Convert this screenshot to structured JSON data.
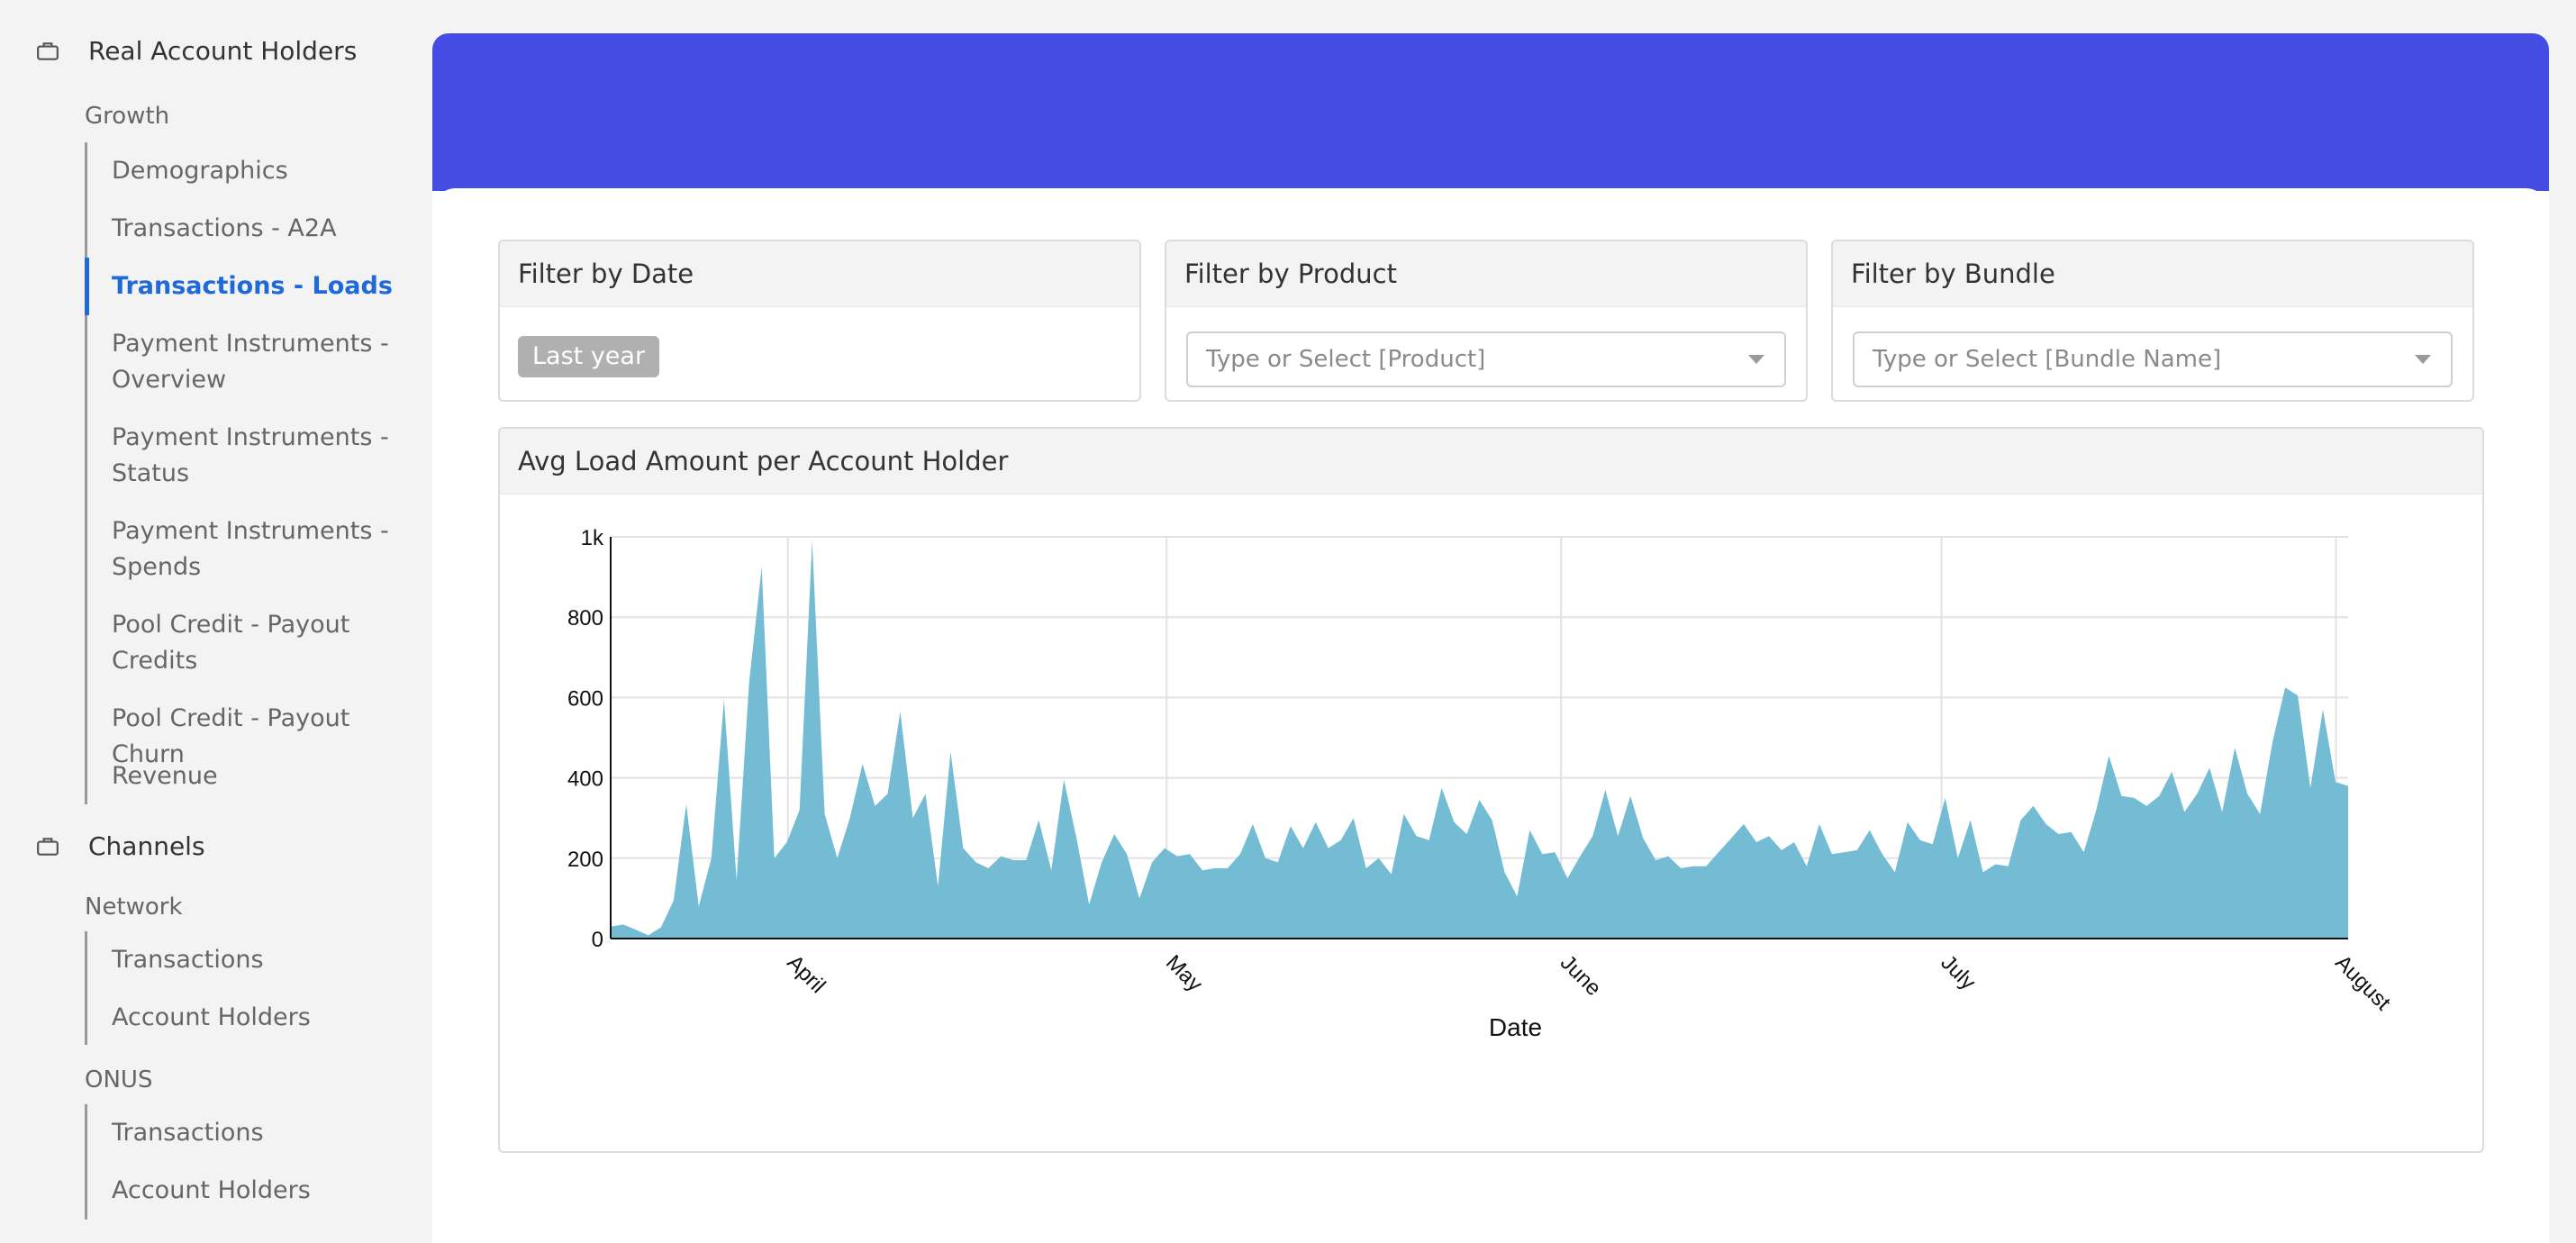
{
  "sidebar": {
    "sections": [
      {
        "title": "Real Account Holders",
        "groups": [
          {
            "label": "Growth",
            "items": [
              {
                "label": "Demographics"
              },
              {
                "label": "Transactions - A2A"
              },
              {
                "label": "Transactions - Loads",
                "active": true
              },
              {
                "label": "Payment Instruments - Overview"
              },
              {
                "label": "Payment Instruments - Status"
              },
              {
                "label": "Payment Instruments - Spends"
              },
              {
                "label": "Pool Credit - Payout Credits"
              },
              {
                "label": "Pool Credit - Payout Churn"
              },
              {
                "label": "Revenue"
              }
            ]
          }
        ]
      },
      {
        "title": "Channels",
        "groups": [
          {
            "label": "Network",
            "items": [
              {
                "label": "Transactions"
              },
              {
                "label": "Account Holders"
              }
            ]
          },
          {
            "label": "ONUS",
            "items": [
              {
                "label": "Transactions"
              },
              {
                "label": "Account Holders"
              }
            ]
          }
        ]
      }
    ]
  },
  "filters": {
    "date": {
      "title": "Filter by Date",
      "chip": "Last year"
    },
    "product": {
      "title": "Filter by Product",
      "placeholder": "Type or Select [Product]"
    },
    "bundle": {
      "title": "Filter by Bundle",
      "placeholder": "Type or Select [Bundle Name]"
    }
  },
  "colors": {
    "banner": "#434de4",
    "accent": "#1f6ad8",
    "area": "#74bcd4"
  },
  "chart_data": {
    "type": "area",
    "title": "Avg Load Amount per Account Holder",
    "xlabel": "Date",
    "ylabel": "",
    "ylim": [
      0,
      1000
    ],
    "y_ticks": [
      "0",
      "200",
      "400",
      "600",
      "800",
      "1k"
    ],
    "x_ticks": [
      "April",
      "May",
      "June",
      "July",
      "August"
    ],
    "grid": true,
    "values": [
      30,
      35,
      22,
      8,
      28,
      95,
      335,
      80,
      200,
      595,
      145,
      640,
      925,
      200,
      240,
      320,
      990,
      310,
      200,
      300,
      435,
      330,
      360,
      565,
      300,
      360,
      130,
      465,
      225,
      190,
      175,
      205,
      195,
      195,
      295,
      170,
      395,
      250,
      85,
      190,
      260,
      210,
      100,
      190,
      225,
      205,
      210,
      170,
      175,
      175,
      210,
      285,
      200,
      190,
      280,
      225,
      290,
      225,
      245,
      300,
      175,
      200,
      160,
      310,
      255,
      245,
      375,
      290,
      260,
      345,
      295,
      165,
      105,
      270,
      210,
      215,
      150,
      205,
      255,
      370,
      255,
      355,
      250,
      195,
      205,
      175,
      180,
      180,
      215,
      250,
      285,
      240,
      255,
      220,
      240,
      180,
      285,
      210,
      215,
      220,
      270,
      210,
      165,
      290,
      245,
      235,
      350,
      200,
      295,
      165,
      185,
      180,
      295,
      330,
      285,
      260,
      265,
      215,
      320,
      455,
      355,
      350,
      330,
      355,
      415,
      315,
      360,
      425,
      315,
      475,
      360,
      310,
      490,
      625,
      605,
      375,
      570,
      390,
      380
    ]
  }
}
